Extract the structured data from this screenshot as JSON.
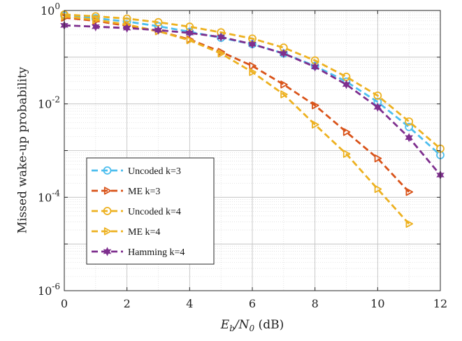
{
  "chart_data": {
    "type": "line",
    "title": "",
    "xlabel_main": "E",
    "xlabel_sub1": "b",
    "xlabel_mid": "/N",
    "xlabel_sub2": "0",
    "xlabel_unit": " (dB)",
    "ylabel": "Missed wake-up probability",
    "xlim": [
      0,
      12
    ],
    "ylim": [
      1e-06,
      1
    ],
    "yscale": "log",
    "grid": true,
    "minor_grid": true,
    "legend_position": "lower-left",
    "x_ticks": [
      "0",
      "2",
      "4",
      "6",
      "8",
      "10",
      "12"
    ],
    "y_ticks": [
      {
        "value": 1,
        "base": "10",
        "exp": "0"
      },
      {
        "value": 0.01,
        "base": "10",
        "exp": "-2"
      },
      {
        "value": 0.0001,
        "base": "10",
        "exp": "-4"
      },
      {
        "value": 1e-06,
        "base": "10",
        "exp": "-6"
      }
    ],
    "series": [
      {
        "name": "Uncoded k=3",
        "color": "#4DBEEE",
        "marker": "circle",
        "x": [
          0,
          1,
          2,
          3,
          4,
          5,
          6,
          7,
          8,
          9,
          10,
          11,
          12
        ],
        "y": [
          0.78,
          0.68,
          0.58,
          0.46,
          0.35,
          0.26,
          0.19,
          0.12,
          0.065,
          0.03,
          0.011,
          0.0032,
          0.0008
        ]
      },
      {
        "name": "ME k=3",
        "color": "#D95319",
        "marker": "triangle-right",
        "x": [
          0,
          1,
          2,
          3,
          4,
          5,
          6,
          7,
          8,
          9,
          10,
          11
        ],
        "y": [
          0.7,
          0.6,
          0.47,
          0.36,
          0.24,
          0.13,
          0.065,
          0.026,
          0.0093,
          0.0025,
          0.00068,
          0.00013
        ]
      },
      {
        "name": "Uncoded k=4",
        "color": "#EDB120",
        "marker": "circle",
        "x": [
          0,
          1,
          2,
          3,
          4,
          5,
          6,
          7,
          8,
          9,
          10,
          11,
          12
        ],
        "y": [
          0.82,
          0.75,
          0.67,
          0.56,
          0.45,
          0.34,
          0.25,
          0.16,
          0.085,
          0.038,
          0.015,
          0.0042,
          0.0011
        ]
      },
      {
        "name": "ME k=4",
        "color": "#EDB120",
        "marker": "triangle-right",
        "x": [
          0,
          1,
          2,
          3,
          4,
          5,
          6,
          7,
          8,
          9,
          10,
          11
        ],
        "y": [
          0.75,
          0.63,
          0.5,
          0.36,
          0.23,
          0.12,
          0.048,
          0.016,
          0.0036,
          0.00085,
          0.00015,
          2.7e-05
        ]
      },
      {
        "name": "Hamming k=4",
        "color": "#7E2F8E",
        "marker": "hexagram",
        "x": [
          0,
          1,
          2,
          3,
          4,
          5,
          6,
          7,
          8,
          9,
          10,
          11,
          12
        ],
        "y": [
          0.48,
          0.45,
          0.42,
          0.38,
          0.33,
          0.27,
          0.19,
          0.12,
          0.062,
          0.026,
          0.0085,
          0.0019,
          0.0003
        ]
      }
    ]
  }
}
